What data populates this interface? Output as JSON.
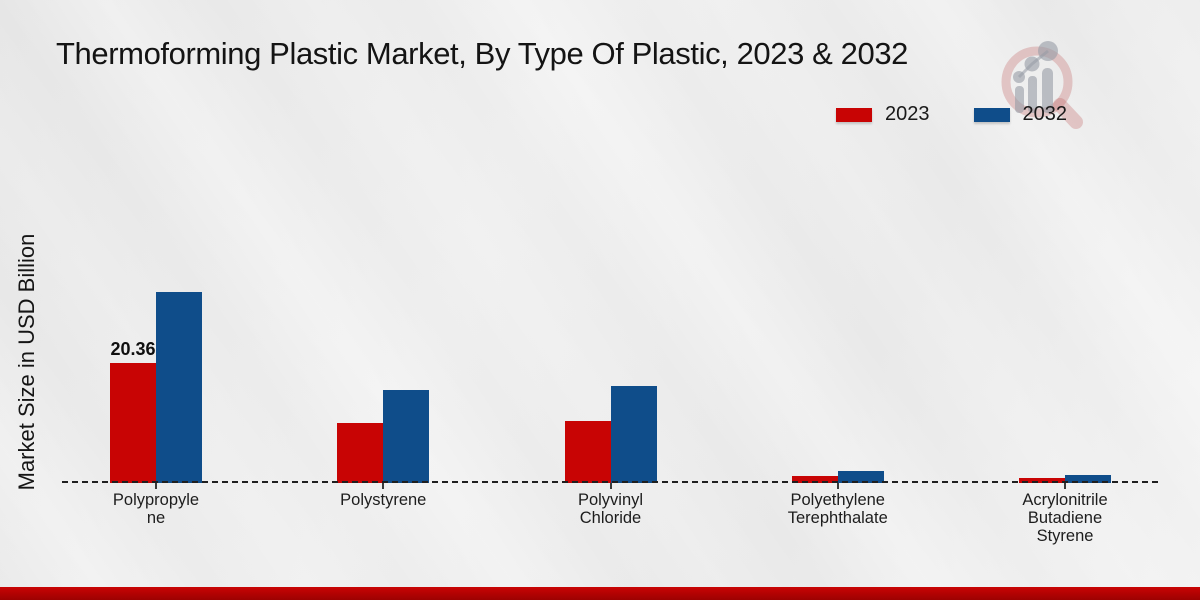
{
  "title": "Thermoforming Plastic Market, By Type Of Plastic, 2023 & 2032",
  "y_axis_label": "Market Size in USD Billion",
  "legend": {
    "items": [
      {
        "label": "2023",
        "color": "#c80404"
      },
      {
        "label": "2032",
        "color": "#0f4d8a"
      }
    ]
  },
  "annotation": {
    "text": "20.36",
    "series": "2023",
    "category": "Polypropylene"
  },
  "colors": {
    "series_2023": "#c80404",
    "series_2032": "#0f4d8a",
    "bottom_band": "#b20303",
    "baseline": "#1f1f1f"
  },
  "chart_data": {
    "type": "bar",
    "title": "Thermoforming Plastic Market, By Type Of Plastic, 2023 & 2032",
    "ylabel": "Market Size in USD Billion",
    "xlabel": "",
    "categories": [
      "Polypropylene",
      "Polystyrene",
      "Polyvinyl Chloride",
      "Polyethylene Terephthalate",
      "Acrylonitrile Butadiene Styrene"
    ],
    "category_label_lines": [
      [
        "Polypropyle",
        "ne"
      ],
      [
        "Polystyrene"
      ],
      [
        "Polyvinyl",
        "Chloride"
      ],
      [
        "Polyethylene",
        "Terephthalate"
      ],
      [
        "Acrylonitrile",
        "Butadiene",
        "Styrene"
      ]
    ],
    "series": [
      {
        "name": "2023",
        "color": "#c80404",
        "values": [
          20.36,
          10.2,
          10.45,
          1.2,
          0.9
        ]
      },
      {
        "name": "2032",
        "color": "#0f4d8a",
        "values": [
          32.4,
          15.8,
          16.5,
          2.0,
          1.4
        ]
      }
    ],
    "data_labels": [
      {
        "series": "2023",
        "category_index": 0,
        "text": "20.36"
      }
    ],
    "ylim": [
      0,
      35
    ],
    "grid": false,
    "baseline_style": "dashed",
    "legend_position": "top-right"
  }
}
